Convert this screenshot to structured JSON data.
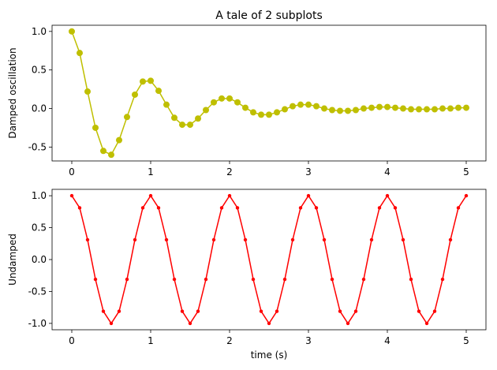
{
  "chart_data": [
    {
      "type": "line",
      "title": "A tale of 2 subplots",
      "xlabel": "",
      "ylabel": "Damped oscillation",
      "xlim": [
        -0.25,
        5.25
      ],
      "ylim": [
        -0.68,
        1.08
      ],
      "xticks": [
        0,
        1,
        2,
        3,
        4,
        5
      ],
      "xtick_labels": [
        "0",
        "1",
        "2",
        "3",
        "4",
        "5"
      ],
      "yticks": [
        1.0,
        0.5,
        0.0,
        -0.5
      ],
      "ytick_labels": [
        "1.0",
        "0.5",
        "0.0",
        "-0.5"
      ],
      "grid": false,
      "series": [
        {
          "color": "#bfbf00",
          "marker": "o",
          "x": [
            0,
            0.1,
            0.2,
            0.3,
            0.4,
            0.5,
            0.6,
            0.7,
            0.8,
            0.9,
            1.0,
            1.1,
            1.2,
            1.3,
            1.4,
            1.5,
            1.6,
            1.7,
            1.8,
            1.9,
            2.0,
            2.1,
            2.2,
            2.3,
            2.4,
            2.5,
            2.6,
            2.7,
            2.8,
            2.9,
            3.0,
            3.1,
            3.2,
            3.3,
            3.4,
            3.5,
            3.6,
            3.7,
            3.8,
            3.9,
            4.0,
            4.1,
            4.2,
            4.3,
            4.4,
            4.5,
            4.6,
            4.7,
            4.8,
            4.9,
            5.0
          ],
          "y": [
            1.0,
            0.72,
            0.22,
            -0.25,
            -0.55,
            -0.6,
            -0.41,
            -0.11,
            0.18,
            0.35,
            0.36,
            0.23,
            0.05,
            -0.12,
            -0.21,
            -0.21,
            -0.13,
            -0.02,
            0.08,
            0.13,
            0.13,
            0.08,
            0.01,
            -0.05,
            -0.08,
            -0.08,
            -0.05,
            -0.01,
            0.03,
            0.05,
            0.05,
            0.03,
            0.0,
            -0.02,
            -0.03,
            -0.03,
            -0.02,
            0.0,
            0.01,
            0.02,
            0.02,
            0.01,
            0.0,
            -0.01,
            -0.01,
            -0.01,
            -0.01,
            0.0,
            0.0,
            0.01,
            0.01
          ]
        }
      ]
    },
    {
      "type": "line",
      "title": "",
      "xlabel": "time (s)",
      "ylabel": "Undamped",
      "xlim": [
        -0.25,
        5.25
      ],
      "ylim": [
        -1.1,
        1.1
      ],
      "xticks": [
        0,
        1,
        2,
        3,
        4,
        5
      ],
      "xtick_labels": [
        "0",
        "1",
        "2",
        "3",
        "4",
        "5"
      ],
      "yticks": [
        1.0,
        0.5,
        0.0,
        -0.5,
        -1.0
      ],
      "ytick_labels": [
        "1.0",
        "0.5",
        "0.0",
        "-0.5",
        "-1.0"
      ],
      "grid": false,
      "series": [
        {
          "color": "#ff0000",
          "marker": ".",
          "x": [
            0,
            0.1,
            0.2,
            0.3,
            0.4,
            0.5,
            0.6,
            0.7,
            0.8,
            0.9,
            1.0,
            1.1,
            1.2,
            1.3,
            1.4,
            1.5,
            1.6,
            1.7,
            1.8,
            1.9,
            2.0,
            2.1,
            2.2,
            2.3,
            2.4,
            2.5,
            2.6,
            2.7,
            2.8,
            2.9,
            3.0,
            3.1,
            3.2,
            3.3,
            3.4,
            3.5,
            3.6,
            3.7,
            3.8,
            3.9,
            4.0,
            4.1,
            4.2,
            4.3,
            4.4,
            4.5,
            4.6,
            4.7,
            4.8,
            4.9,
            5.0
          ],
          "y": [
            1.0,
            0.81,
            0.31,
            -0.31,
            -0.81,
            -1.0,
            -0.81,
            -0.31,
            0.31,
            0.81,
            1.0,
            0.81,
            0.31,
            -0.31,
            -0.81,
            -1.0,
            -0.81,
            -0.31,
            0.31,
            0.81,
            1.0,
            0.81,
            0.31,
            -0.31,
            -0.81,
            -1.0,
            -0.81,
            -0.31,
            0.31,
            0.81,
            1.0,
            0.81,
            0.31,
            -0.31,
            -0.81,
            -1.0,
            -0.81,
            -0.31,
            0.31,
            0.81,
            1.0,
            0.81,
            0.31,
            -0.31,
            -0.81,
            -1.0,
            -0.81,
            -0.31,
            0.31,
            0.81,
            1.0
          ]
        }
      ]
    }
  ]
}
